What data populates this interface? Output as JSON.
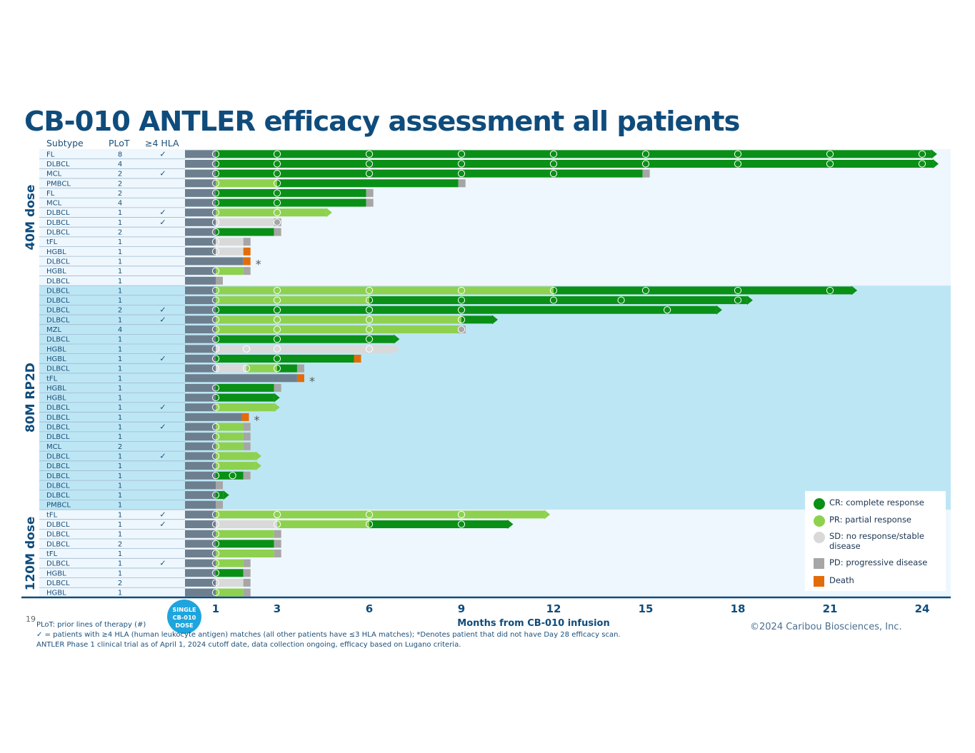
{
  "title": "CB-010 ANTLER efficacy assessment all patients",
  "page_number": "19",
  "copyright": "©2024 Caribou Biosciences, Inc.",
  "footnotes": [
    "PLoT: prior lines of therapy (#)",
    "✓ = patients with ≥4 HLA (human leukocyte antigen) matches (all other patients have ≤3 HLA matches); *Denotes patient that did not have Day 28 efficacy scan.",
    "ANTLER Phase 1 clinical trial as of April 1, 2024 cutoff date, data collection ongoing, efficacy based on Lugano criteria."
  ],
  "dose_badge": [
    "SINGLE",
    "CB-010",
    "DOSE"
  ],
  "colors": {
    "CR": "#0a9016",
    "PR": "#8ed14f",
    "SD": "#d9d9d9",
    "PD": "#a6a6a6",
    "Death": "#e36c0a",
    "pre": "#6d7f8f",
    "title": "#0f4c7c",
    "axis": "#0f4c7c",
    "band_light": "#eef7fd",
    "band_mid": "#bde6f5"
  },
  "legend": [
    {
      "key": "CR",
      "label": "CR: complete response",
      "shape": "circle"
    },
    {
      "key": "PR",
      "label": "PR: partial response",
      "shape": "circle"
    },
    {
      "key": "SD",
      "label": "SD: no response/stable disease",
      "shape": "circle"
    },
    {
      "key": "PD",
      "label": "PD: progressive disease",
      "shape": "square"
    },
    {
      "key": "Death",
      "label": "Death",
      "shape": "square"
    }
  ],
  "chart_data": {
    "type": "swimmer",
    "title": "CB-010 ANTLER efficacy assessment all patients",
    "xlabel": "Months from CB-010 infusion",
    "xticks": [
      1,
      3,
      6,
      9,
      12,
      15,
      18,
      21,
      24
    ],
    "xlim": [
      0,
      25.3
    ],
    "columns": [
      "Subtype",
      "PLoT",
      "≥4 HLA"
    ],
    "check_symbol": "✓",
    "star_symbol": "*",
    "groups": [
      {
        "label": "40M dose",
        "rows": [
          0,
          13
        ]
      },
      {
        "label": "80M RP2D",
        "rows": [
          14,
          36
        ]
      },
      {
        "label": "120M dose",
        "rows": [
          37,
          45
        ]
      }
    ],
    "patients": [
      {
        "subtype": "FL",
        "plot": "8",
        "hla": true,
        "star": false,
        "segments": [
          [
            "CR",
            1,
            24.3
          ]
        ],
        "arrow": true,
        "end": null,
        "assess": [
          1,
          3,
          6,
          9,
          12,
          15,
          18,
          21,
          24
        ]
      },
      {
        "subtype": "DLBCL",
        "plot": "4",
        "hla": false,
        "star": false,
        "segments": [
          [
            "CR",
            1,
            24.35
          ]
        ],
        "arrow": true,
        "end": null,
        "assess": [
          1,
          3,
          6,
          9,
          12,
          15,
          18,
          21,
          24
        ]
      },
      {
        "subtype": "MCL",
        "plot": "2",
        "hla": true,
        "star": false,
        "segments": [
          [
            "CR",
            1,
            14.9
          ]
        ],
        "arrow": false,
        "end": "PD",
        "assess": [
          1,
          3,
          6,
          9,
          12
        ]
      },
      {
        "subtype": "PMBCL",
        "plot": "2",
        "hla": false,
        "star": false,
        "segments": [
          [
            "PR",
            1,
            3
          ],
          [
            "CR",
            3,
            8.9
          ]
        ],
        "arrow": false,
        "end": "PD",
        "assess": [
          1,
          3
        ]
      },
      {
        "subtype": "FL",
        "plot": "2",
        "hla": false,
        "star": false,
        "segments": [
          [
            "CR",
            1,
            5.9
          ]
        ],
        "arrow": false,
        "end": "PD",
        "assess": [
          1,
          3
        ]
      },
      {
        "subtype": "MCL",
        "plot": "4",
        "hla": false,
        "star": false,
        "segments": [
          [
            "CR",
            1,
            5.9
          ]
        ],
        "arrow": false,
        "end": "PD",
        "assess": [
          1,
          3
        ]
      },
      {
        "subtype": "DLBCL",
        "plot": "1",
        "hla": true,
        "star": false,
        "segments": [
          [
            "PR",
            1,
            4.6
          ]
        ],
        "arrow": true,
        "end": null,
        "assess": [
          1,
          3
        ]
      },
      {
        "subtype": "DLBCL",
        "plot": "1",
        "hla": true,
        "star": false,
        "segments": [
          [
            "SD",
            1,
            2.9
          ]
        ],
        "arrow": false,
        "end": "PD",
        "assess": [
          1,
          3
        ]
      },
      {
        "subtype": "DLBCL",
        "plot": "2",
        "hla": false,
        "star": false,
        "segments": [
          [
            "CR",
            1,
            2.9
          ]
        ],
        "arrow": false,
        "end": "PD",
        "assess": [
          1
        ]
      },
      {
        "subtype": "tFL",
        "plot": "1",
        "hla": false,
        "star": false,
        "segments": [
          [
            "SD",
            1,
            1.9
          ]
        ],
        "arrow": false,
        "end": "PD",
        "assess": [
          1
        ]
      },
      {
        "subtype": "HGBL",
        "plot": "1",
        "hla": false,
        "star": false,
        "segments": [
          [
            "SD",
            1,
            1.9
          ]
        ],
        "arrow": false,
        "end": "Death",
        "assess": [
          1
        ]
      },
      {
        "subtype": "DLBCL",
        "plot": "1",
        "hla": false,
        "star": true,
        "segments": [
          [
            "pre",
            1,
            1.9
          ]
        ],
        "arrow": false,
        "end": "Death",
        "assess": []
      },
      {
        "subtype": "HGBL",
        "plot": "1",
        "hla": false,
        "star": false,
        "segments": [
          [
            "PR",
            1,
            1.9
          ]
        ],
        "arrow": false,
        "end": "PD",
        "assess": [
          1
        ]
      },
      {
        "subtype": "DLBCL",
        "plot": "1",
        "hla": false,
        "star": false,
        "segments": [],
        "arrow": false,
        "end": "PD",
        "assess": []
      },
      {
        "subtype": "DLBCL",
        "plot": "1",
        "hla": false,
        "star": false,
        "segments": [
          [
            "PR",
            1,
            12
          ],
          [
            "CR",
            12,
            21.7
          ]
        ],
        "arrow": true,
        "end": null,
        "assess": [
          1,
          3,
          6,
          9,
          12,
          15,
          18,
          21
        ]
      },
      {
        "subtype": "DLBCL",
        "plot": "1",
        "hla": false,
        "star": false,
        "segments": [
          [
            "PR",
            1,
            6
          ],
          [
            "CR",
            6,
            18.3
          ]
        ],
        "arrow": true,
        "end": null,
        "assess": [
          1,
          3,
          6,
          9,
          12,
          14.2,
          18
        ]
      },
      {
        "subtype": "DLBCL",
        "plot": "2",
        "hla": true,
        "star": false,
        "segments": [
          [
            "CR",
            1,
            17.3
          ]
        ],
        "arrow": true,
        "end": null,
        "assess": [
          1,
          3,
          6,
          9,
          15.7
        ]
      },
      {
        "subtype": "DLBCL",
        "plot": "1",
        "hla": true,
        "star": false,
        "segments": [
          [
            "PR",
            1,
            9
          ],
          [
            "CR",
            9,
            10
          ]
        ],
        "arrow": true,
        "end": null,
        "assess": [
          1,
          3,
          6,
          9
        ]
      },
      {
        "subtype": "MZL",
        "plot": "4",
        "hla": false,
        "star": false,
        "segments": [
          [
            "PR",
            1,
            8.9
          ]
        ],
        "arrow": false,
        "end": "PD",
        "assess": [
          1,
          3,
          6,
          9
        ]
      },
      {
        "subtype": "DLBCL",
        "plot": "1",
        "hla": false,
        "star": false,
        "segments": [
          [
            "CR",
            1,
            6.8
          ]
        ],
        "arrow": true,
        "end": null,
        "assess": [
          1,
          3,
          6
        ]
      },
      {
        "subtype": "HGBL",
        "plot": "1",
        "hla": false,
        "star": false,
        "segments": [
          [
            "SD",
            1,
            6.8
          ]
        ],
        "arrow": true,
        "end": null,
        "assess": [
          1,
          2,
          3,
          6
        ]
      },
      {
        "subtype": "HGBL",
        "plot": "1",
        "hla": true,
        "star": false,
        "segments": [
          [
            "CR",
            1,
            5.5
          ]
        ],
        "arrow": false,
        "end": "Death",
        "assess": [
          1,
          3
        ]
      },
      {
        "subtype": "DLBCL",
        "plot": "1",
        "hla": false,
        "star": false,
        "segments": [
          [
            "SD",
            1,
            2
          ],
          [
            "PR",
            2,
            3
          ],
          [
            "CR",
            3,
            3.65
          ]
        ],
        "arrow": false,
        "end": "PD",
        "assess": [
          1,
          2,
          3
        ]
      },
      {
        "subtype": "tFL",
        "plot": "1",
        "hla": false,
        "star": true,
        "segments": [
          [
            "pre",
            1,
            3.65
          ]
        ],
        "arrow": false,
        "end": "Death",
        "assess": []
      },
      {
        "subtype": "HGBL",
        "plot": "1",
        "hla": false,
        "star": false,
        "segments": [
          [
            "CR",
            1,
            2.9
          ]
        ],
        "arrow": false,
        "end": "PD",
        "assess": [
          1
        ]
      },
      {
        "subtype": "HGBL",
        "plot": "1",
        "hla": false,
        "star": false,
        "segments": [
          [
            "CR",
            1,
            2.9
          ]
        ],
        "arrow": true,
        "end": null,
        "assess": [
          1
        ]
      },
      {
        "subtype": "DLBCL",
        "plot": "1",
        "hla": true,
        "star": false,
        "segments": [
          [
            "PR",
            1,
            2.9
          ]
        ],
        "arrow": true,
        "end": null,
        "assess": [
          1
        ]
      },
      {
        "subtype": "DLBCL",
        "plot": "1",
        "hla": false,
        "star": true,
        "segments": [
          [
            "pre",
            1,
            1.85
          ]
        ],
        "arrow": false,
        "end": "Death",
        "assess": []
      },
      {
        "subtype": "DLBCL",
        "plot": "1",
        "hla": true,
        "star": false,
        "segments": [
          [
            "PR",
            1,
            1.9
          ]
        ],
        "arrow": false,
        "end": "PD",
        "assess": [
          1
        ]
      },
      {
        "subtype": "DLBCL",
        "plot": "1",
        "hla": false,
        "star": false,
        "segments": [
          [
            "PR",
            1,
            1.9
          ]
        ],
        "arrow": false,
        "end": "PD",
        "assess": [
          1
        ]
      },
      {
        "subtype": "MCL",
        "plot": "2",
        "hla": false,
        "star": false,
        "segments": [
          [
            "PR",
            1,
            1.9
          ]
        ],
        "arrow": false,
        "end": "PD",
        "assess": [
          1
        ]
      },
      {
        "subtype": "DLBCL",
        "plot": "1",
        "hla": true,
        "star": false,
        "segments": [
          [
            "PR",
            1,
            2.3
          ]
        ],
        "arrow": true,
        "end": null,
        "assess": [
          1
        ]
      },
      {
        "subtype": "DLBCL",
        "plot": "1",
        "hla": false,
        "star": false,
        "segments": [
          [
            "PR",
            1,
            2.3
          ]
        ],
        "arrow": true,
        "end": null,
        "assess": [
          1
        ]
      },
      {
        "subtype": "DLBCL",
        "plot": "1",
        "hla": false,
        "star": false,
        "segments": [
          [
            "CR",
            1,
            1.9
          ]
        ],
        "arrow": false,
        "end": "PD",
        "assess": [
          1,
          1.55
        ]
      },
      {
        "subtype": "DLBCL",
        "plot": "1",
        "hla": false,
        "star": false,
        "segments": [],
        "arrow": false,
        "end": "PD",
        "assess": []
      },
      {
        "subtype": "DLBCL",
        "plot": "1",
        "hla": false,
        "star": false,
        "segments": [
          [
            "CR",
            1,
            1.25
          ]
        ],
        "arrow": true,
        "end": null,
        "assess": [
          1
        ]
      },
      {
        "subtype": "PMBCL",
        "plot": "1",
        "hla": false,
        "star": false,
        "segments": [],
        "arrow": false,
        "end": "PD",
        "assess": []
      },
      {
        "subtype": "tFL",
        "plot": "1",
        "hla": true,
        "star": false,
        "segments": [
          [
            "PR",
            1,
            11.7
          ]
        ],
        "arrow": true,
        "end": null,
        "assess": [
          1,
          3,
          6,
          9
        ]
      },
      {
        "subtype": "DLBCL",
        "plot": "1",
        "hla": true,
        "star": false,
        "segments": [
          [
            "SD",
            1,
            3
          ],
          [
            "PR",
            3,
            6
          ],
          [
            "CR",
            6,
            10.5
          ]
        ],
        "arrow": true,
        "end": null,
        "assess": [
          1,
          3,
          6,
          9
        ]
      },
      {
        "subtype": "DLBCL",
        "plot": "1",
        "hla": false,
        "star": false,
        "segments": [
          [
            "PR",
            1,
            2.9
          ]
        ],
        "arrow": false,
        "end": "PD",
        "assess": [
          1
        ]
      },
      {
        "subtype": "DLBCL",
        "plot": "2",
        "hla": false,
        "star": false,
        "segments": [
          [
            "CR",
            1,
            2.9
          ]
        ],
        "arrow": false,
        "end": "PD",
        "assess": [
          1
        ]
      },
      {
        "subtype": "tFL",
        "plot": "1",
        "hla": false,
        "star": false,
        "segments": [
          [
            "PR",
            1,
            2.9
          ]
        ],
        "arrow": false,
        "end": "PD",
        "assess": [
          1
        ]
      },
      {
        "subtype": "DLBCL",
        "plot": "1",
        "hla": true,
        "star": false,
        "segments": [
          [
            "PR",
            1,
            1.9
          ]
        ],
        "arrow": false,
        "end": "PD",
        "assess": [
          1
        ]
      },
      {
        "subtype": "HGBL",
        "plot": "1",
        "hla": false,
        "star": false,
        "segments": [
          [
            "CR",
            1,
            1.9
          ]
        ],
        "arrow": false,
        "end": "PD",
        "assess": [
          1
        ]
      },
      {
        "subtype": "DLBCL",
        "plot": "2",
        "hla": false,
        "star": false,
        "segments": [
          [
            "SD",
            1,
            1.9
          ]
        ],
        "arrow": false,
        "end": "PD",
        "assess": [
          1
        ]
      },
      {
        "subtype": "HGBL",
        "plot": "1",
        "hla": false,
        "star": false,
        "segments": [
          [
            "PR",
            1,
            1.9
          ]
        ],
        "arrow": false,
        "end": "PD",
        "assess": [
          1
        ]
      }
    ]
  }
}
